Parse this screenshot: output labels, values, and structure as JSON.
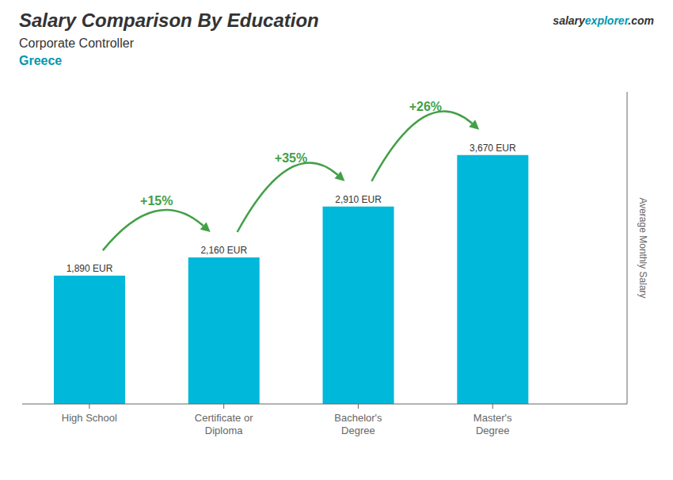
{
  "chart_data": {
    "type": "bar",
    "title": "Salary Comparison By Education",
    "subtitle": "Corporate Controller",
    "country": "Greece",
    "website": [
      "salary",
      "explorer",
      ".com"
    ],
    "ylabel": "Average Monthly Salary",
    "categories": [
      "High School",
      "Certificate or\nDiploma",
      "Bachelor's\nDegree",
      "Master's\nDegree"
    ],
    "values": [
      1890,
      2160,
      2910,
      3670
    ],
    "value_labels": [
      "1,890 EUR",
      "2,160 EUR",
      "2,910 EUR",
      "3,670 EUR"
    ],
    "change_labels": [
      "+15%",
      "+35%",
      "+26%"
    ],
    "color": "#00b8d9",
    "ylim": [
      0,
      4600
    ],
    "tick_labels": "x",
    "data_labels": true,
    "grid": false
  }
}
